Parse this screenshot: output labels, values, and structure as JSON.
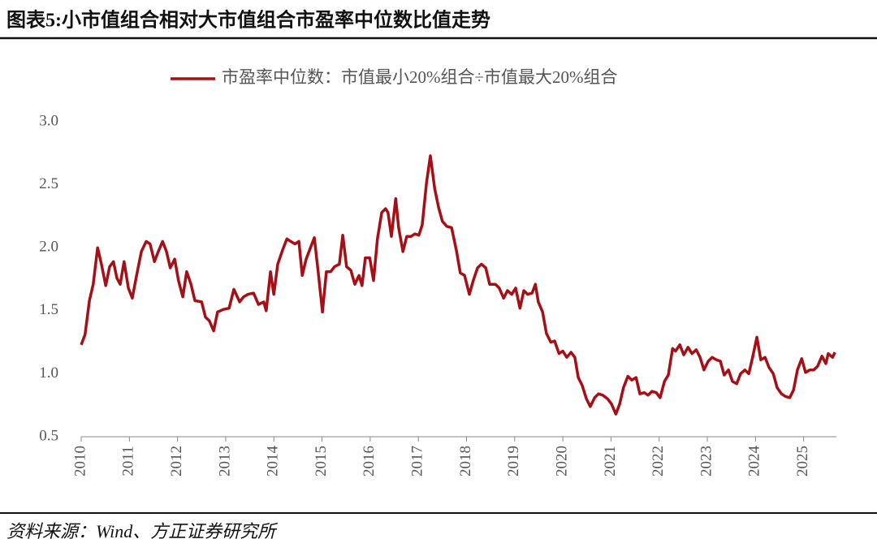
{
  "title": "图表5:小市值组合相对大市值组合市盈率中位数比值走势",
  "source": "资料来源：Wind、方正证券研究所",
  "chart_data": {
    "type": "line",
    "x": [
      2010.0,
      2010.08,
      2010.17,
      2010.25,
      2010.34,
      2010.42,
      2010.51,
      2010.59,
      2010.67,
      2010.74,
      2010.81,
      2010.89,
      2010.98,
      2011.06,
      2011.15,
      2011.25,
      2011.35,
      2011.43,
      2011.52,
      2011.6,
      2011.69,
      2011.77,
      2011.85,
      2011.94,
      2012.02,
      2012.11,
      2012.19,
      2012.28,
      2012.36,
      2012.5,
      2012.58,
      2012.66,
      2012.75,
      2012.83,
      2012.95,
      2013.07,
      2013.17,
      2013.29,
      2013.37,
      2013.46,
      2013.58,
      2013.68,
      2013.79,
      2013.84,
      2013.93,
      2014.0,
      2014.08,
      2014.18,
      2014.27,
      2014.35,
      2014.44,
      2014.52,
      2014.59,
      2014.67,
      2014.76,
      2014.84,
      2014.92,
      2015.01,
      2015.09,
      2015.18,
      2015.26,
      2015.36,
      2015.43,
      2015.51,
      2015.6,
      2015.68,
      2015.77,
      2015.83,
      2015.9,
      2015.99,
      2016.07,
      2016.15,
      2016.24,
      2016.32,
      2016.37,
      2016.44,
      2016.53,
      2016.59,
      2016.68,
      2016.76,
      2016.85,
      2016.93,
      2017.01,
      2017.08,
      2017.17,
      2017.25,
      2017.34,
      2017.42,
      2017.5,
      2017.59,
      2017.69,
      2017.79,
      2017.87,
      2017.96,
      2018.06,
      2018.14,
      2018.23,
      2018.31,
      2018.4,
      2018.48,
      2018.6,
      2018.68,
      2018.77,
      2018.85,
      2018.94,
      2019.02,
      2019.11,
      2019.19,
      2019.27,
      2019.36,
      2019.43,
      2019.49,
      2019.58,
      2019.66,
      2019.75,
      2019.83,
      2019.92,
      2020.0,
      2020.08,
      2020.17,
      2020.25,
      2020.32,
      2020.4,
      2020.49,
      2020.57,
      2020.66,
      2020.74,
      2020.83,
      2020.93,
      2021.01,
      2021.1,
      2021.18,
      2021.26,
      2021.35,
      2021.43,
      2021.52,
      2021.6,
      2021.69,
      2021.77,
      2021.85,
      2021.94,
      2022.02,
      2022.11,
      2022.19,
      2022.28,
      2022.34,
      2022.43,
      2022.51,
      2022.6,
      2022.68,
      2022.77,
      2022.85,
      2022.93,
      2023.02,
      2023.1,
      2023.19,
      2023.27,
      2023.35,
      2023.44,
      2023.52,
      2023.61,
      2023.69,
      2023.78,
      2023.86,
      2023.94,
      2024.03,
      2024.11,
      2024.2,
      2024.28,
      2024.37,
      2024.45,
      2024.54,
      2024.62,
      2024.71,
      2024.79,
      2024.87,
      2024.96,
      2025.04,
      2025.13,
      2025.21,
      2025.29,
      2025.38,
      2025.46,
      2025.51,
      2025.6,
      2025.65
    ],
    "series": [
      {
        "name": "市盈率中位数：市值最小20%组合÷市值最大20%组合",
        "color": "#a50f15",
        "values": [
          1.23,
          1.31,
          1.58,
          1.71,
          2.0,
          1.87,
          1.7,
          1.85,
          1.89,
          1.76,
          1.71,
          1.89,
          1.68,
          1.6,
          1.78,
          1.97,
          2.05,
          2.03,
          1.89,
          1.97,
          2.05,
          1.97,
          1.84,
          1.91,
          1.74,
          1.61,
          1.81,
          1.71,
          1.58,
          1.57,
          1.45,
          1.42,
          1.34,
          1.49,
          1.51,
          1.52,
          1.67,
          1.57,
          1.61,
          1.63,
          1.64,
          1.55,
          1.57,
          1.5,
          1.81,
          1.63,
          1.87,
          1.98,
          2.07,
          2.05,
          2.03,
          2.05,
          1.78,
          1.91,
          2.0,
          2.08,
          1.81,
          1.49,
          1.81,
          1.81,
          1.85,
          1.87,
          2.1,
          1.85,
          1.82,
          1.71,
          1.78,
          1.7,
          1.92,
          1.92,
          1.74,
          2.07,
          2.28,
          2.31,
          2.28,
          2.09,
          2.39,
          2.16,
          1.97,
          2.09,
          2.09,
          2.11,
          2.1,
          2.18,
          2.52,
          2.73,
          2.47,
          2.32,
          2.21,
          2.17,
          2.16,
          1.98,
          1.8,
          1.78,
          1.63,
          1.74,
          1.84,
          1.87,
          1.84,
          1.71,
          1.71,
          1.68,
          1.6,
          1.66,
          1.63,
          1.68,
          1.52,
          1.66,
          1.63,
          1.64,
          1.71,
          1.57,
          1.49,
          1.32,
          1.25,
          1.26,
          1.16,
          1.18,
          1.13,
          1.17,
          1.13,
          0.97,
          0.91,
          0.8,
          0.74,
          0.81,
          0.84,
          0.83,
          0.8,
          0.76,
          0.68,
          0.76,
          0.89,
          0.98,
          0.95,
          0.97,
          0.84,
          0.85,
          0.83,
          0.86,
          0.85,
          0.81,
          0.94,
          0.99,
          1.2,
          1.18,
          1.23,
          1.15,
          1.21,
          1.16,
          1.19,
          1.13,
          1.03,
          1.1,
          1.13,
          1.11,
          1.1,
          0.99,
          1.03,
          0.94,
          0.92,
          1.0,
          1.03,
          1.0,
          1.13,
          1.29,
          1.11,
          1.13,
          1.05,
          1.0,
          0.89,
          0.84,
          0.82,
          0.81,
          0.87,
          1.03,
          1.12,
          1.01,
          1.03,
          1.03,
          1.06,
          1.14,
          1.08,
          1.16,
          1.13,
          1.17
        ]
      }
    ],
    "xlim": [
      2010,
      2025.68
    ],
    "xticks": [
      2010,
      2011,
      2012,
      2013,
      2014,
      2015,
      2016,
      2017,
      2018,
      2019,
      2020,
      2021,
      2022,
      2023,
      2024,
      2025
    ],
    "ylim": [
      0.5,
      3.0
    ],
    "yticks": [
      0.5,
      {
        "value": 1,
        "label": "1.0"
      },
      1.5,
      {
        "value": 2,
        "label": "2.0"
      },
      2.5,
      {
        "value": 3,
        "label": "3.0"
      }
    ],
    "grid": false,
    "legend": "top"
  }
}
